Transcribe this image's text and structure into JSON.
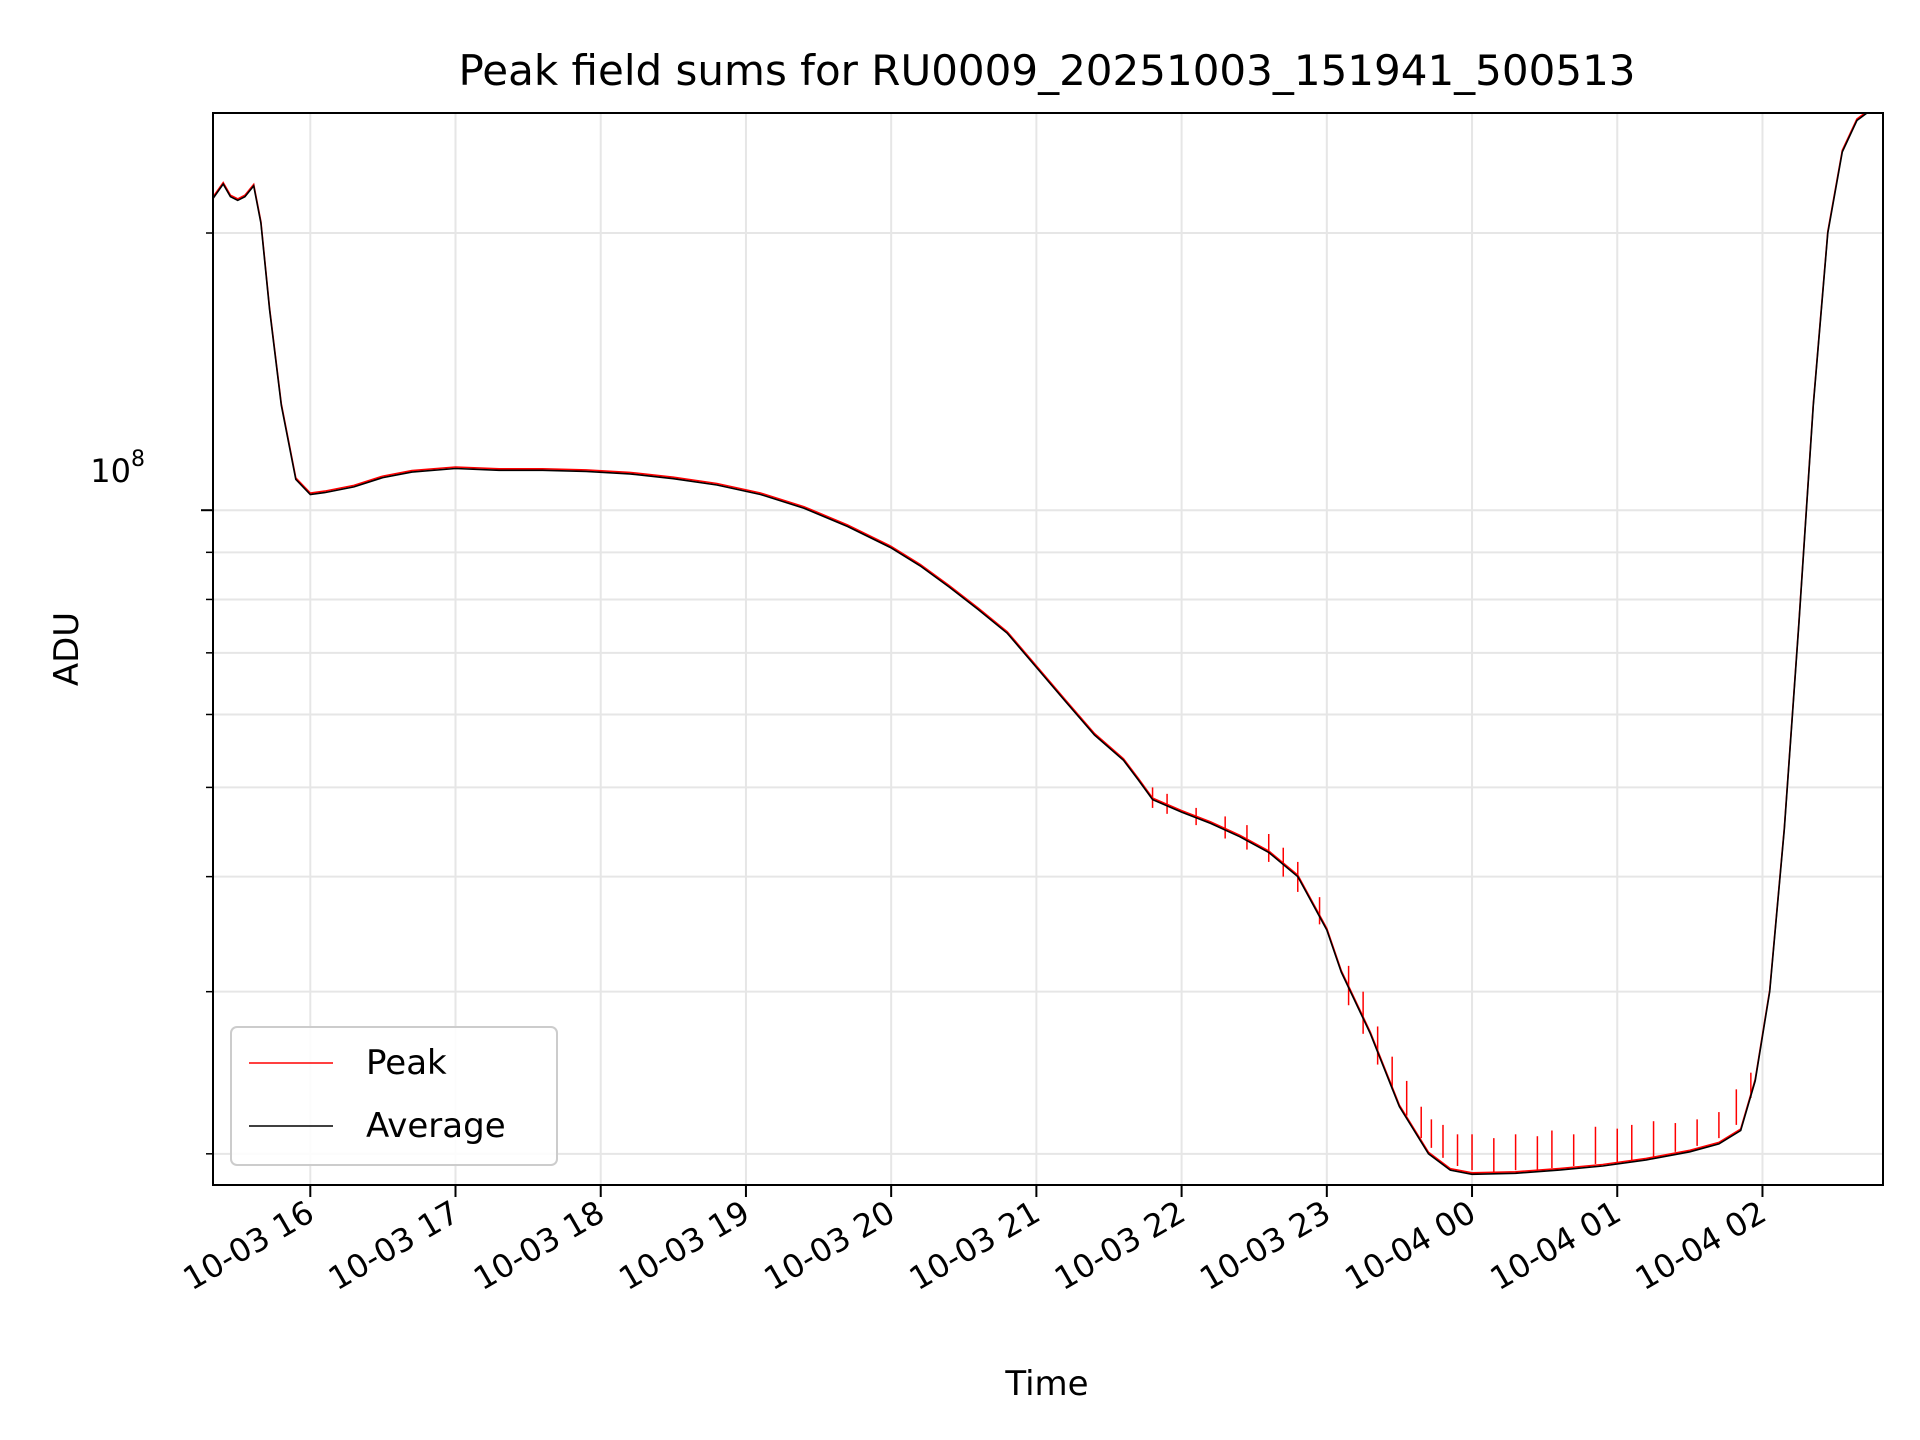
{
  "chart_data": {
    "type": "line",
    "title": "Peak field sums for RU0009_20251003_151941_500513",
    "xlabel": "Time",
    "ylabel": "ADU",
    "yscale": "log",
    "ylim": [
      18500000,
      270000000
    ],
    "xlim_hours": [
      15.33,
      26.83
    ],
    "grid": true,
    "legend_position": "lower-left",
    "y_major_tick_label": {
      "base": "10",
      "exp": "8"
    },
    "y_major_tick_value": 100000000,
    "y_minor_tick_values": [
      20000000,
      30000000,
      40000000,
      50000000,
      60000000,
      70000000,
      80000000,
      90000000,
      200000000
    ],
    "x_ticks": [
      {
        "hour": 16,
        "label": "10-03 16"
      },
      {
        "hour": 17,
        "label": "10-03 17"
      },
      {
        "hour": 18,
        "label": "10-03 18"
      },
      {
        "hour": 19,
        "label": "10-03 19"
      },
      {
        "hour": 20,
        "label": "10-03 20"
      },
      {
        "hour": 21,
        "label": "10-03 21"
      },
      {
        "hour": 22,
        "label": "10-03 22"
      },
      {
        "hour": 23,
        "label": "10-03 23"
      },
      {
        "hour": 24,
        "label": "10-04 00"
      },
      {
        "hour": 25,
        "label": "10-04 01"
      },
      {
        "hour": 26,
        "label": "10-04 02"
      }
    ],
    "series": [
      {
        "name": "Peak",
        "color": "#ff0000",
        "spikes": [
          [
            21.8,
            47500000,
            50000000
          ],
          [
            21.9,
            46800000,
            49200000
          ],
          [
            22.1,
            45500000,
            47500000
          ],
          [
            22.3,
            44000000,
            46500000
          ],
          [
            22.45,
            42800000,
            45500000
          ],
          [
            22.6,
            41500000,
            44500000
          ],
          [
            22.7,
            40000000,
            43000000
          ],
          [
            22.8,
            38500000,
            41500000
          ],
          [
            22.95,
            35500000,
            38000000
          ],
          [
            23.15,
            29000000,
            32000000
          ],
          [
            23.25,
            27000000,
            30000000
          ],
          [
            23.35,
            25000000,
            27500000
          ],
          [
            23.45,
            23500000,
            25500000
          ],
          [
            23.55,
            22000000,
            24000000
          ],
          [
            23.65,
            20800000,
            22500000
          ],
          [
            23.72,
            20300000,
            21800000
          ],
          [
            23.8,
            19800000,
            21500000
          ],
          [
            23.9,
            19400000,
            21000000
          ],
          [
            24.0,
            19200000,
            21000000
          ],
          [
            24.15,
            19100000,
            20800000
          ],
          [
            24.3,
            19200000,
            21000000
          ],
          [
            24.45,
            19200000,
            20900000
          ],
          [
            24.55,
            19300000,
            21200000
          ],
          [
            24.7,
            19400000,
            21000000
          ],
          [
            24.85,
            19500000,
            21400000
          ],
          [
            25.0,
            19600000,
            21300000
          ],
          [
            25.1,
            19700000,
            21500000
          ],
          [
            25.25,
            19800000,
            21700000
          ],
          [
            25.4,
            20100000,
            21600000
          ],
          [
            25.55,
            20400000,
            21800000
          ],
          [
            25.7,
            20800000,
            22200000
          ],
          [
            25.82,
            21500000,
            23500000
          ],
          [
            25.92,
            23000000,
            24500000
          ]
        ]
      },
      {
        "name": "Average",
        "color": "#000000",
        "points": [
          [
            15.33,
            218000000
          ],
          [
            15.4,
            226000000
          ],
          [
            15.45,
            219000000
          ],
          [
            15.5,
            217000000
          ],
          [
            15.55,
            219000000
          ],
          [
            15.61,
            225000000
          ],
          [
            15.66,
            205000000
          ],
          [
            15.72,
            165000000
          ],
          [
            15.8,
            130000000
          ],
          [
            15.9,
            108000000
          ],
          [
            16.0,
            104000000
          ],
          [
            16.1,
            104500000
          ],
          [
            16.3,
            106000000
          ],
          [
            16.5,
            108500000
          ],
          [
            16.7,
            110000000
          ],
          [
            17.0,
            111000000
          ],
          [
            17.3,
            110500000
          ],
          [
            17.6,
            110500000
          ],
          [
            17.9,
            110200000
          ],
          [
            18.2,
            109500000
          ],
          [
            18.5,
            108200000
          ],
          [
            18.8,
            106500000
          ],
          [
            19.1,
            104000000
          ],
          [
            19.4,
            100500000
          ],
          [
            19.7,
            96000000
          ],
          [
            20.0,
            91000000
          ],
          [
            20.2,
            87000000
          ],
          [
            20.4,
            82500000
          ],
          [
            20.6,
            78000000
          ],
          [
            20.8,
            73500000
          ],
          [
            21.0,
            67500000
          ],
          [
            21.2,
            62000000
          ],
          [
            21.4,
            57000000
          ],
          [
            21.6,
            53500000
          ],
          [
            21.7,
            51000000
          ],
          [
            21.8,
            48500000
          ],
          [
            22.0,
            47000000
          ],
          [
            22.2,
            45700000
          ],
          [
            22.4,
            44200000
          ],
          [
            22.6,
            42500000
          ],
          [
            22.8,
            40000000
          ],
          [
            23.0,
            35000000
          ],
          [
            23.1,
            31500000
          ],
          [
            23.3,
            27000000
          ],
          [
            23.5,
            22500000
          ],
          [
            23.7,
            20000000
          ],
          [
            23.85,
            19200000
          ],
          [
            24.0,
            19000000
          ],
          [
            24.3,
            19050000
          ],
          [
            24.6,
            19200000
          ],
          [
            24.9,
            19400000
          ],
          [
            25.2,
            19700000
          ],
          [
            25.5,
            20100000
          ],
          [
            25.7,
            20500000
          ],
          [
            25.85,
            21200000
          ],
          [
            25.95,
            24000000
          ],
          [
            26.05,
            30000000
          ],
          [
            26.15,
            45000000
          ],
          [
            26.25,
            75000000
          ],
          [
            26.35,
            130000000
          ],
          [
            26.45,
            200000000
          ],
          [
            26.55,
            245000000
          ],
          [
            26.65,
            265000000
          ],
          [
            26.72,
            270000000
          ]
        ]
      }
    ]
  }
}
